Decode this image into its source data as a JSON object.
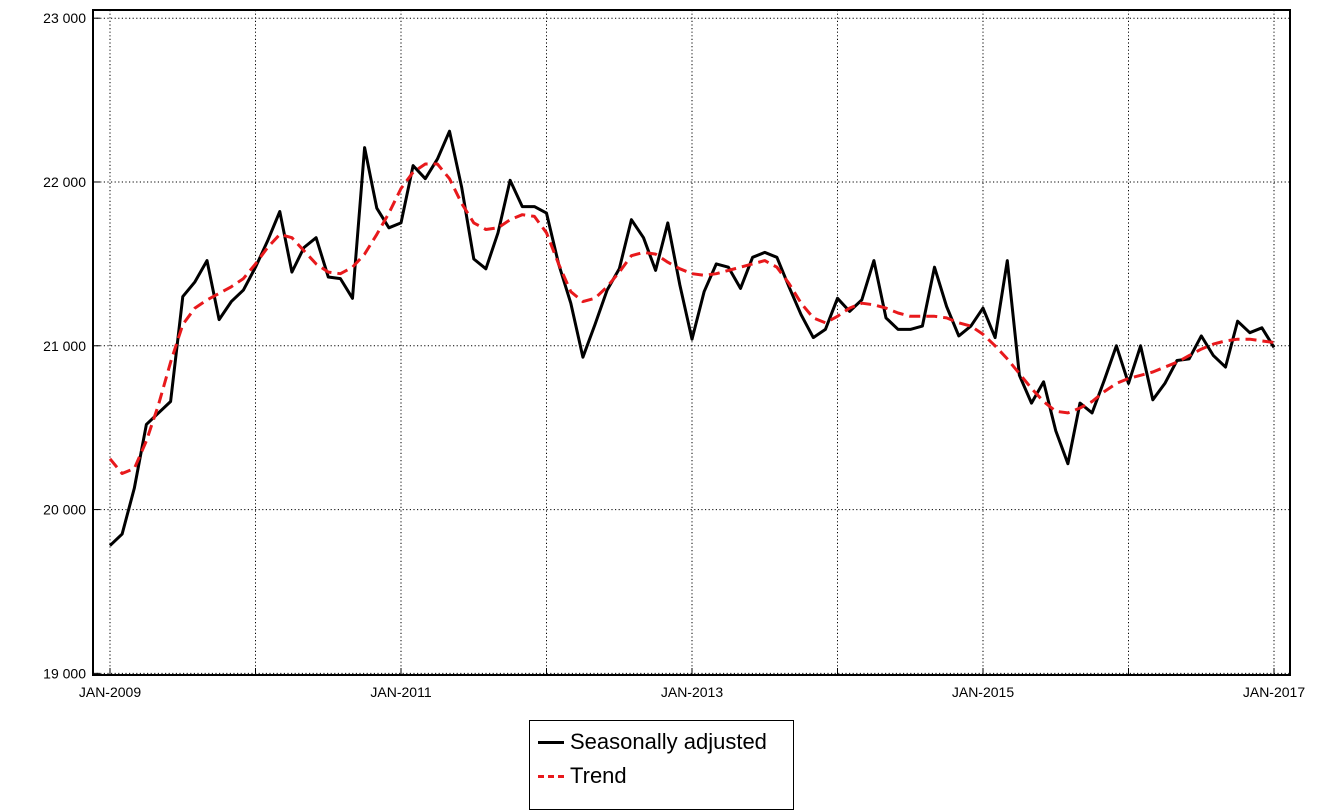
{
  "chart_data": {
    "type": "line",
    "title": "",
    "xlabel": "",
    "ylabel": "",
    "ylim": [
      18990,
      23050
    ],
    "yticks": [
      19000,
      20000,
      21000,
      22000,
      23000
    ],
    "ytick_labels": [
      "19 000",
      "20 000",
      "21 000",
      "22 000",
      "23 000"
    ],
    "xrange": [
      "2009-01",
      "2017-01"
    ],
    "xticks": [
      "2009-01",
      "2010-01",
      "2011-01",
      "2012-01",
      "2013-01",
      "2014-01",
      "2015-01",
      "2016-01",
      "2017-01"
    ],
    "xtick_labels": [
      "JAN-2009",
      "",
      "JAN-2011",
      "",
      "JAN-2013",
      "",
      "JAN-2015",
      "",
      "JAN-2017"
    ],
    "grid": true,
    "legend_position": "bottom-center",
    "series": [
      {
        "name": "Seasonally adjusted",
        "color": "#000000",
        "style": "solid",
        "points": [
          [
            "2009-01",
            19780
          ],
          [
            "2009-02",
            19850
          ],
          [
            "2009-03",
            20130
          ],
          [
            "2009-04",
            20520
          ],
          [
            "2009-05",
            20590
          ],
          [
            "2009-06",
            20660
          ],
          [
            "2009-07",
            21300
          ],
          [
            "2009-08",
            21390
          ],
          [
            "2009-09",
            21520
          ],
          [
            "2009-10",
            21160
          ],
          [
            "2009-11",
            21270
          ],
          [
            "2009-12",
            21340
          ],
          [
            "2010-01",
            21480
          ],
          [
            "2010-02",
            21640
          ],
          [
            "2010-03",
            21820
          ],
          [
            "2010-04",
            21450
          ],
          [
            "2010-05",
            21600
          ],
          [
            "2010-06",
            21660
          ],
          [
            "2010-07",
            21420
          ],
          [
            "2010-08",
            21410
          ],
          [
            "2010-09",
            21290
          ],
          [
            "2010-10",
            22210
          ],
          [
            "2010-11",
            21840
          ],
          [
            "2010-12",
            21720
          ],
          [
            "2011-01",
            21750
          ],
          [
            "2011-02",
            22100
          ],
          [
            "2011-03",
            22020
          ],
          [
            "2011-04",
            22140
          ],
          [
            "2011-05",
            22310
          ],
          [
            "2011-06",
            21970
          ],
          [
            "2011-07",
            21530
          ],
          [
            "2011-08",
            21470
          ],
          [
            "2011-09",
            21690
          ],
          [
            "2011-10",
            22010
          ],
          [
            "2011-11",
            21850
          ],
          [
            "2011-12",
            21850
          ],
          [
            "2012-01",
            21810
          ],
          [
            "2012-02",
            21500
          ],
          [
            "2012-03",
            21260
          ],
          [
            "2012-04",
            20930
          ],
          [
            "2012-05",
            21130
          ],
          [
            "2012-06",
            21340
          ],
          [
            "2012-07",
            21470
          ],
          [
            "2012-08",
            21770
          ],
          [
            "2012-09",
            21660
          ],
          [
            "2012-10",
            21460
          ],
          [
            "2012-11",
            21750
          ],
          [
            "2012-12",
            21370
          ],
          [
            "2013-01",
            21040
          ],
          [
            "2013-02",
            21330
          ],
          [
            "2013-03",
            21500
          ],
          [
            "2013-04",
            21480
          ],
          [
            "2013-05",
            21350
          ],
          [
            "2013-06",
            21540
          ],
          [
            "2013-07",
            21570
          ],
          [
            "2013-08",
            21540
          ],
          [
            "2013-09",
            21360
          ],
          [
            "2013-10",
            21190
          ],
          [
            "2013-11",
            21050
          ],
          [
            "2013-12",
            21100
          ],
          [
            "2014-01",
            21290
          ],
          [
            "2014-02",
            21210
          ],
          [
            "2014-03",
            21280
          ],
          [
            "2014-04",
            21520
          ],
          [
            "2014-05",
            21170
          ],
          [
            "2014-06",
            21100
          ],
          [
            "2014-07",
            21100
          ],
          [
            "2014-08",
            21120
          ],
          [
            "2014-09",
            21480
          ],
          [
            "2014-10",
            21240
          ],
          [
            "2014-11",
            21060
          ],
          [
            "2014-12",
            21120
          ],
          [
            "2015-01",
            21230
          ],
          [
            "2015-02",
            21050
          ],
          [
            "2015-03",
            21520
          ],
          [
            "2015-04",
            20820
          ],
          [
            "2015-05",
            20650
          ],
          [
            "2015-06",
            20780
          ],
          [
            "2015-07",
            20480
          ],
          [
            "2015-08",
            20280
          ],
          [
            "2015-09",
            20650
          ],
          [
            "2015-10",
            20590
          ],
          [
            "2015-11",
            20790
          ],
          [
            "2015-12",
            21000
          ],
          [
            "2016-01",
            20770
          ],
          [
            "2016-02",
            21000
          ],
          [
            "2016-03",
            20670
          ],
          [
            "2016-04",
            20770
          ],
          [
            "2016-05",
            20910
          ],
          [
            "2016-06",
            20920
          ],
          [
            "2016-07",
            21060
          ],
          [
            "2016-08",
            20940
          ],
          [
            "2016-09",
            20870
          ],
          [
            "2016-10",
            21150
          ],
          [
            "2016-11",
            21080
          ],
          [
            "2016-12",
            21110
          ],
          [
            "2017-01",
            20990
          ]
        ]
      },
      {
        "name": "Trend",
        "color": "#e8191c",
        "style": "dashed",
        "points": [
          [
            "2009-01",
            20310
          ],
          [
            "2009-02",
            20220
          ],
          [
            "2009-03",
            20250
          ],
          [
            "2009-04",
            20420
          ],
          [
            "2009-05",
            20640
          ],
          [
            "2009-06",
            20900
          ],
          [
            "2009-07",
            21130
          ],
          [
            "2009-08",
            21230
          ],
          [
            "2009-09",
            21280
          ],
          [
            "2009-10",
            21320
          ],
          [
            "2009-11",
            21360
          ],
          [
            "2009-12",
            21410
          ],
          [
            "2010-01",
            21500
          ],
          [
            "2010-02",
            21600
          ],
          [
            "2010-03",
            21680
          ],
          [
            "2010-04",
            21660
          ],
          [
            "2010-05",
            21580
          ],
          [
            "2010-06",
            21500
          ],
          [
            "2010-07",
            21450
          ],
          [
            "2010-08",
            21440
          ],
          [
            "2010-09",
            21480
          ],
          [
            "2010-10",
            21560
          ],
          [
            "2010-11",
            21680
          ],
          [
            "2010-12",
            21810
          ],
          [
            "2011-01",
            21960
          ],
          [
            "2011-02",
            22060
          ],
          [
            "2011-03",
            22110
          ],
          [
            "2011-04",
            22110
          ],
          [
            "2011-05",
            22020
          ],
          [
            "2011-06",
            21870
          ],
          [
            "2011-07",
            21750
          ],
          [
            "2011-08",
            21710
          ],
          [
            "2011-09",
            21720
          ],
          [
            "2011-10",
            21770
          ],
          [
            "2011-11",
            21800
          ],
          [
            "2011-12",
            21790
          ],
          [
            "2012-01",
            21690
          ],
          [
            "2012-02",
            21500
          ],
          [
            "2012-03",
            21330
          ],
          [
            "2012-04",
            21270
          ],
          [
            "2012-05",
            21290
          ],
          [
            "2012-06",
            21360
          ],
          [
            "2012-07",
            21450
          ],
          [
            "2012-08",
            21550
          ],
          [
            "2012-09",
            21570
          ],
          [
            "2012-10",
            21560
          ],
          [
            "2012-11",
            21510
          ],
          [
            "2012-12",
            21470
          ],
          [
            "2013-01",
            21440
          ],
          [
            "2013-02",
            21430
          ],
          [
            "2013-03",
            21440
          ],
          [
            "2013-04",
            21460
          ],
          [
            "2013-05",
            21480
          ],
          [
            "2013-06",
            21500
          ],
          [
            "2013-07",
            21520
          ],
          [
            "2013-08",
            21480
          ],
          [
            "2013-09",
            21380
          ],
          [
            "2013-10",
            21260
          ],
          [
            "2013-11",
            21170
          ],
          [
            "2013-12",
            21140
          ],
          [
            "2014-01",
            21180
          ],
          [
            "2014-02",
            21230
          ],
          [
            "2014-03",
            21260
          ],
          [
            "2014-04",
            21250
          ],
          [
            "2014-05",
            21230
          ],
          [
            "2014-06",
            21200
          ],
          [
            "2014-07",
            21180
          ],
          [
            "2014-08",
            21180
          ],
          [
            "2014-09",
            21180
          ],
          [
            "2014-10",
            21170
          ],
          [
            "2014-11",
            21140
          ],
          [
            "2014-12",
            21120
          ],
          [
            "2015-01",
            21070
          ],
          [
            "2015-02",
            21000
          ],
          [
            "2015-03",
            20920
          ],
          [
            "2015-04",
            20830
          ],
          [
            "2015-05",
            20740
          ],
          [
            "2015-06",
            20660
          ],
          [
            "2015-07",
            20600
          ],
          [
            "2015-08",
            20590
          ],
          [
            "2015-09",
            20620
          ],
          [
            "2015-10",
            20660
          ],
          [
            "2015-11",
            20720
          ],
          [
            "2015-12",
            20770
          ],
          [
            "2016-01",
            20800
          ],
          [
            "2016-02",
            20820
          ],
          [
            "2016-03",
            20840
          ],
          [
            "2016-04",
            20870
          ],
          [
            "2016-05",
            20900
          ],
          [
            "2016-06",
            20940
          ],
          [
            "2016-07",
            20980
          ],
          [
            "2016-08",
            21010
          ],
          [
            "2016-09",
            21030
          ],
          [
            "2016-10",
            21040
          ],
          [
            "2016-11",
            21040
          ],
          [
            "2016-12",
            21030
          ],
          [
            "2017-01",
            21020
          ]
        ]
      }
    ]
  },
  "legend": {
    "items": [
      {
        "label": "Seasonally adjusted"
      },
      {
        "label": "Trend"
      }
    ]
  }
}
